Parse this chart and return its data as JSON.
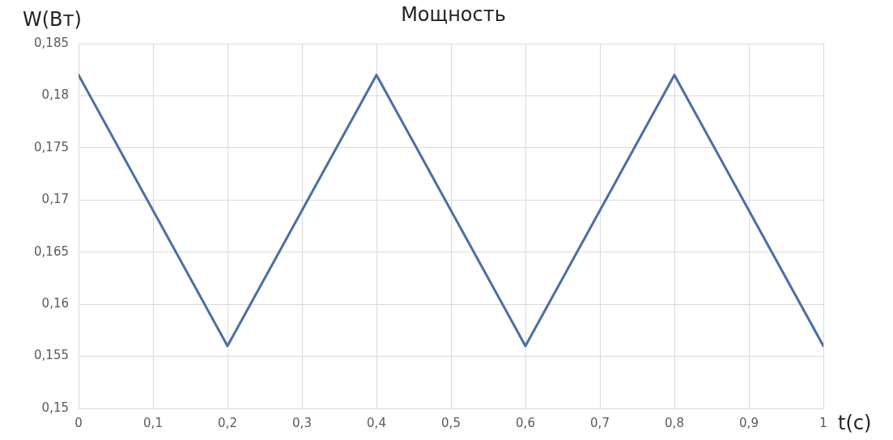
{
  "chart_data": {
    "type": "line",
    "title": "Мощность",
    "xlabel": "t(c)",
    "ylabel": "W(Вт)",
    "x": [
      0,
      0.2,
      0.4,
      0.6,
      0.8,
      1
    ],
    "series": [
      {
        "color": "#4a6fa5",
        "values": [
          0.182,
          0.156,
          0.182,
          0.156,
          0.182,
          0.156
        ]
      }
    ],
    "xlim": [
      0,
      1
    ],
    "xticks": [
      0,
      {
        "value": 0.1,
        "label": "0,1"
      },
      {
        "value": 0.2,
        "label": "0,2"
      },
      {
        "value": 0.3,
        "label": "0,3"
      },
      {
        "value": 0.4,
        "label": "0,4"
      },
      {
        "value": 0.5,
        "label": "0,5"
      },
      {
        "value": 0.6,
        "label": "0,6"
      },
      {
        "value": 0.7,
        "label": "0,7"
      },
      {
        "value": 0.8,
        "label": "0,8"
      },
      {
        "value": 0.9,
        "label": "0,9"
      },
      1
    ],
    "ylim": [
      0.15,
      0.185
    ],
    "yticks": [
      {
        "value": 0.15,
        "label": "0,15"
      },
      {
        "value": 0.155,
        "label": "0,155"
      },
      {
        "value": 0.16,
        "label": "0,16"
      },
      {
        "value": 0.165,
        "label": "0,165"
      },
      {
        "value": 0.17,
        "label": "0,17"
      },
      {
        "value": 0.175,
        "label": "0,175"
      },
      {
        "value": 0.18,
        "label": "0,18"
      },
      {
        "value": 0.185,
        "label": "0,185"
      }
    ],
    "grid": true,
    "legend": false,
    "marker": "none",
    "line_style": "solid"
  }
}
